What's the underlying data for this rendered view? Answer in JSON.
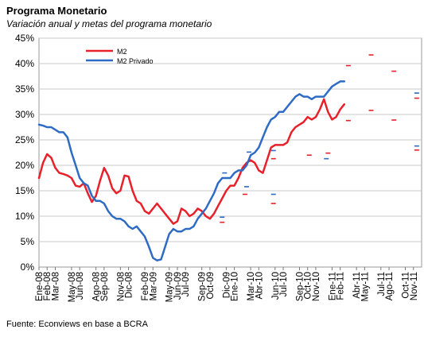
{
  "title": "Programa Monetario",
  "subtitle": "Variación anual y metas del programa monetario",
  "source": "Fuente: Econviews en base a BCRA",
  "chart_data": {
    "type": "line",
    "ylim": [
      0,
      45
    ],
    "y_ticks": [
      0,
      5,
      10,
      15,
      20,
      25,
      30,
      35,
      40,
      45
    ],
    "y_tick_format": "percent",
    "x_tick_labels": [
      "Ene-08",
      "Feb-08",
      "Mar-08",
      "May-08",
      "Jun-08",
      "Ago-08",
      "Sep-08",
      "Nov-08",
      "Dic-08",
      "Feb-09",
      "Mar-09",
      "May-09",
      "Jun-09",
      "Jul-09",
      "Sep-09",
      "Oct-09",
      "Dic-09",
      "Ene-10",
      "Mar-10",
      "Abr-10",
      "Jun-10",
      "Jul-10",
      "Sep-10",
      "Oct-10",
      "Nov-10",
      "Ene-11",
      "Feb-11",
      "Abr-11",
      "May-11",
      "Jul-11",
      "Ago-11",
      "Oct-11",
      "Nov-11"
    ],
    "x_tick_months": [
      0,
      1,
      2,
      4,
      5,
      7,
      8,
      10,
      11,
      13,
      14,
      16,
      17,
      18,
      20,
      21,
      23,
      24,
      26,
      27,
      29,
      30,
      32,
      33,
      34,
      36,
      37,
      39,
      40,
      42,
      43,
      45,
      46
    ],
    "x_range_months": [
      0,
      47
    ],
    "grid": true,
    "legend_position": "top-left",
    "series": [
      {
        "name": "M2",
        "color": "#e8202a",
        "x": [
          0,
          0.5,
          1,
          1.5,
          2,
          2.5,
          3,
          3.5,
          4,
          4.5,
          5,
          5.5,
          6,
          6.5,
          7,
          7.5,
          8,
          8.5,
          9,
          9.5,
          10,
          10.5,
          11,
          11.5,
          12,
          12.5,
          13,
          13.5,
          14,
          14.5,
          15,
          15.5,
          16,
          16.5,
          17,
          17.5,
          18,
          18.5,
          19,
          19.5,
          20,
          20.5,
          21,
          21.5,
          22,
          22.5,
          23,
          23.5,
          24,
          24.5,
          25,
          25.5,
          26,
          26.5,
          27,
          27.5,
          28,
          28.5,
          29,
          29.5,
          30,
          30.5,
          31,
          31.5,
          32,
          32.5,
          33,
          33.5,
          34,
          34.5,
          35,
          35.5,
          36,
          36.5,
          37,
          37.5
        ],
        "values": [
          17.5,
          20.5,
          22.2,
          21.5,
          19.5,
          18.5,
          18.3,
          18.0,
          17.5,
          16.0,
          15.8,
          16.5,
          14.5,
          12.8,
          14.0,
          17.0,
          19.5,
          18.0,
          15.5,
          14.5,
          15.0,
          18.0,
          17.8,
          15.0,
          13.0,
          12.5,
          11.0,
          10.5,
          11.5,
          12.5,
          11.5,
          10.5,
          9.5,
          8.5,
          9.0,
          11.5,
          11.0,
          10.0,
          10.5,
          11.5,
          11.0,
          10.0,
          9.5,
          10.5,
          12.0,
          13.5,
          15.0,
          16.0,
          16.0,
          17.5,
          19.5,
          20.5,
          21.0,
          20.5,
          19.0,
          18.5,
          21.0,
          23.5,
          24.0,
          24.0,
          24.0,
          24.5,
          26.5,
          27.5,
          28.0,
          28.5,
          29.5,
          29.0,
          29.5,
          31.0,
          33.0,
          30.5,
          29.0,
          29.5,
          31.0,
          32.0
        ]
      },
      {
        "name": "M2 Privado",
        "color": "#2e6bc4",
        "x": [
          0,
          0.5,
          1,
          1.5,
          2,
          2.5,
          3,
          3.5,
          4,
          4.5,
          5,
          5.5,
          6,
          6.5,
          7,
          7.5,
          8,
          8.5,
          9,
          9.5,
          10,
          10.5,
          11,
          11.5,
          12,
          12.5,
          13,
          13.5,
          14,
          14.5,
          15,
          15.5,
          16,
          16.5,
          17,
          17.5,
          18,
          18.5,
          19,
          19.5,
          20,
          20.5,
          21,
          21.5,
          22,
          22.5,
          23,
          23.5,
          24,
          24.5,
          25,
          25.5,
          26,
          26.5,
          27,
          27.5,
          28,
          28.5,
          29,
          29.5,
          30,
          30.5,
          31,
          31.5,
          32,
          32.5,
          33,
          33.5,
          34,
          34.5,
          35,
          35.5,
          36,
          36.5,
          37,
          37.5
        ],
        "values": [
          28.0,
          27.8,
          27.5,
          27.5,
          27.0,
          26.5,
          26.5,
          25.5,
          22.5,
          20.0,
          17.5,
          16.5,
          16.0,
          14.0,
          13.0,
          13.0,
          12.5,
          11.0,
          10.0,
          9.5,
          9.5,
          9.0,
          8.0,
          7.5,
          8.0,
          7.0,
          6.0,
          4.0,
          1.8,
          1.3,
          1.5,
          4.0,
          6.5,
          7.5,
          7.0,
          7.0,
          7.5,
          7.5,
          8.0,
          9.5,
          10.5,
          11.5,
          13.0,
          14.5,
          16.5,
          17.5,
          17.5,
          17.5,
          18.5,
          19.0,
          19.0,
          20.0,
          22.0,
          22.5,
          23.5,
          25.5,
          27.5,
          29.0,
          29.5,
          30.5,
          30.5,
          31.5,
          32.5,
          33.5,
          34.0,
          33.5,
          33.5,
          33.0,
          33.5,
          33.5,
          33.5,
          34.5,
          35.5,
          36.0,
          36.5,
          36.5
        ]
      }
    ],
    "targets": [
      {
        "x": 22.5,
        "value": 8.8,
        "color": "#e8202a"
      },
      {
        "x": 22.5,
        "value": 9.8,
        "color": "#2e6bc4"
      },
      {
        "x": 22.8,
        "value": 18.5,
        "color": "#2e6bc4"
      },
      {
        "x": 25.3,
        "value": 14.3,
        "color": "#e8202a"
      },
      {
        "x": 25.5,
        "value": 15.8,
        "color": "#2e6bc4"
      },
      {
        "x": 26.0,
        "value": 20.8,
        "color": "#e8202a"
      },
      {
        "x": 25.8,
        "value": 22.6,
        "color": "#2e6bc4"
      },
      {
        "x": 28.8,
        "value": 12.5,
        "color": "#e8202a"
      },
      {
        "x": 28.8,
        "value": 14.3,
        "color": "#2e6bc4"
      },
      {
        "x": 28.8,
        "value": 21.3,
        "color": "#e8202a"
      },
      {
        "x": 28.8,
        "value": 22.9,
        "color": "#2e6bc4"
      },
      {
        "x": 33.2,
        "value": 22.0,
        "color": "#e8202a"
      },
      {
        "x": 35.3,
        "value": 21.3,
        "color": "#2e6bc4"
      },
      {
        "x": 35.5,
        "value": 22.4,
        "color": "#e8202a"
      },
      {
        "x": 38.0,
        "value": 28.8,
        "color": "#e8202a"
      },
      {
        "x": 38.0,
        "value": 39.6,
        "color": "#e8202a"
      },
      {
        "x": 40.8,
        "value": 30.8,
        "color": "#e8202a"
      },
      {
        "x": 40.8,
        "value": 41.7,
        "color": "#e8202a"
      },
      {
        "x": 43.6,
        "value": 28.9,
        "color": "#e8202a"
      },
      {
        "x": 43.6,
        "value": 38.5,
        "color": "#e8202a"
      },
      {
        "x": 46.4,
        "value": 23.8,
        "color": "#2e6bc4"
      },
      {
        "x": 46.4,
        "value": 23.0,
        "color": "#e8202a"
      },
      {
        "x": 46.4,
        "value": 33.2,
        "color": "#e8202a"
      },
      {
        "x": 46.4,
        "value": 34.2,
        "color": "#2e6bc4"
      }
    ]
  }
}
